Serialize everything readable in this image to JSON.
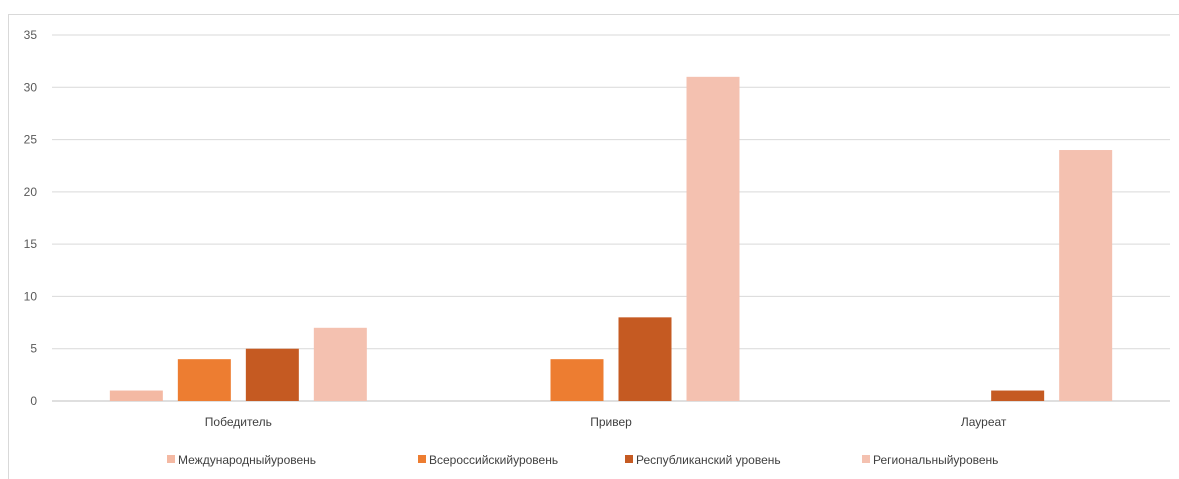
{
  "chart_data": {
    "type": "bar",
    "categories": [
      "Победитель",
      "Привер",
      "Лауреат"
    ],
    "series": [
      {
        "name": "Международныйуровень",
        "color": "#f4b9a3",
        "values": [
          1,
          null,
          null
        ]
      },
      {
        "name": "Всероссийскийуровень",
        "color": "#ed7d31",
        "values": [
          4,
          4,
          null
        ]
      },
      {
        "name": "Республиканский уровень",
        "color": "#c55a22",
        "values": [
          5,
          8,
          1
        ]
      },
      {
        "name": "Региональныйуровень",
        "color": "#f4c1b0",
        "values": [
          7,
          31,
          24
        ]
      }
    ],
    "ylim": [
      0,
      35
    ],
    "yticks": [
      0,
      5,
      10,
      15,
      20,
      25,
      30,
      35
    ],
    "grid": true,
    "legend_position": "bottom",
    "title": "",
    "xlabel": "",
    "ylabel": ""
  }
}
